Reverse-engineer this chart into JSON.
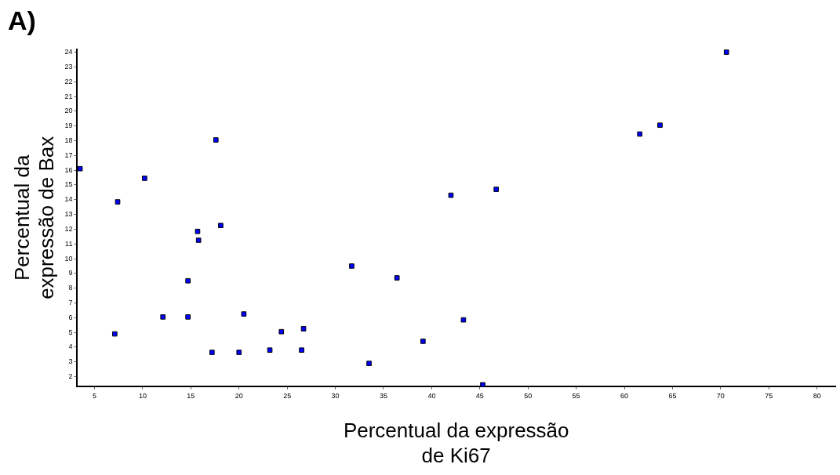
{
  "chart_data": {
    "type": "scatter",
    "title": "A)",
    "xlabel": "Percentual da expressão\nde Ki67",
    "ylabel": "Percentual da\nexpressão de Bax",
    "x": [
      3.5,
      7.4,
      7.1,
      10.2,
      12.1,
      14.7,
      14.7,
      15.7,
      15.8,
      17.6,
      17.2,
      18.1,
      20.0,
      20.5,
      23.2,
      24.4,
      26.5,
      26.7,
      31.7,
      33.5,
      36.4,
      39.1,
      42.0,
      43.3,
      45.3,
      46.7,
      61.6,
      63.7,
      70.6
    ],
    "series": [
      {
        "color": "#0000ff",
        "values": [
          16.1,
          13.85,
          4.9,
          15.45,
          6.05,
          8.5,
          6.05,
          11.85,
          11.25,
          18.05,
          3.65,
          12.25,
          3.65,
          6.25,
          3.8,
          5.05,
          3.8,
          5.25,
          9.5,
          2.9,
          8.7,
          4.4,
          14.3,
          5.85,
          1.45,
          14.7,
          18.45,
          19.05,
          24.0
        ]
      }
    ],
    "xlim": [
      3.2,
      81.9
    ],
    "ylim": [
      1.35,
      24.2
    ],
    "xticks": [
      5,
      10,
      15,
      20,
      25,
      30,
      35,
      40,
      45,
      50,
      55,
      60,
      65,
      70,
      75,
      80
    ],
    "yticks": [
      2,
      3,
      4,
      5,
      6,
      7,
      8,
      9,
      10,
      11,
      12,
      13,
      14,
      15,
      16,
      17,
      18,
      19,
      20,
      21,
      22,
      23,
      24
    ],
    "grid": false,
    "legend": false,
    "marker": "square"
  }
}
